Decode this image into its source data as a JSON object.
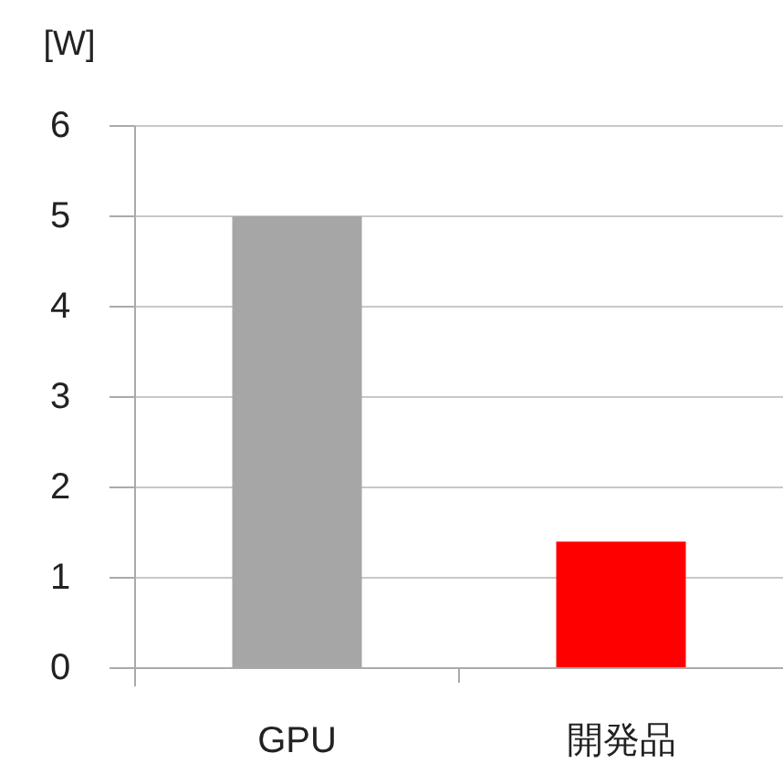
{
  "chart_data": {
    "type": "bar",
    "ylabel": "[W]",
    "categories": [
      "GPU",
      "開発品"
    ],
    "values": [
      5,
      1.4
    ],
    "colors": [
      "#a6a6a6",
      "#ff0000"
    ],
    "ylim": [
      0,
      6
    ],
    "yticks": [
      0,
      1,
      2,
      3,
      4,
      5,
      6
    ],
    "grid": "y"
  }
}
